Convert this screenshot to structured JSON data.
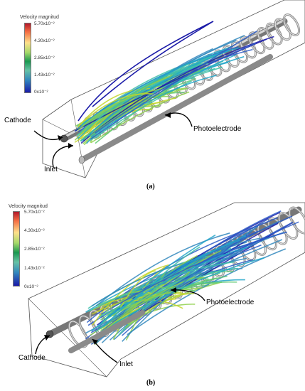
{
  "panel_a": {
    "colorbar": {
      "title": "Velocity magnitud",
      "ticks": [
        "5.70x10⁻²",
        "4.30x10⁻²",
        "2.85x10⁻²",
        "1.43x10⁻²",
        "0x10⁻²"
      ]
    },
    "labels": {
      "cathode": "Cathode",
      "inlet": "Inlet",
      "photoelectrode": "Photoelectrode"
    },
    "caption": "(a)"
  },
  "panel_b": {
    "colorbar": {
      "title": "Velocity magnitud",
      "ticks": [
        "5.70x10⁻²",
        "4.30x10⁻²",
        "2.85x10⁻²",
        "1.43x10⁻²",
        "0x10⁻²"
      ]
    },
    "labels": {
      "cathode": "Cathode",
      "inlet": "Inlet",
      "photoelectrode": "Photoelectrode"
    },
    "caption": "(b)"
  },
  "colors": {
    "high": "#b2182b",
    "mid": "#1a9850",
    "low": "#1a1aa8",
    "coil": "#9a9a9a"
  }
}
